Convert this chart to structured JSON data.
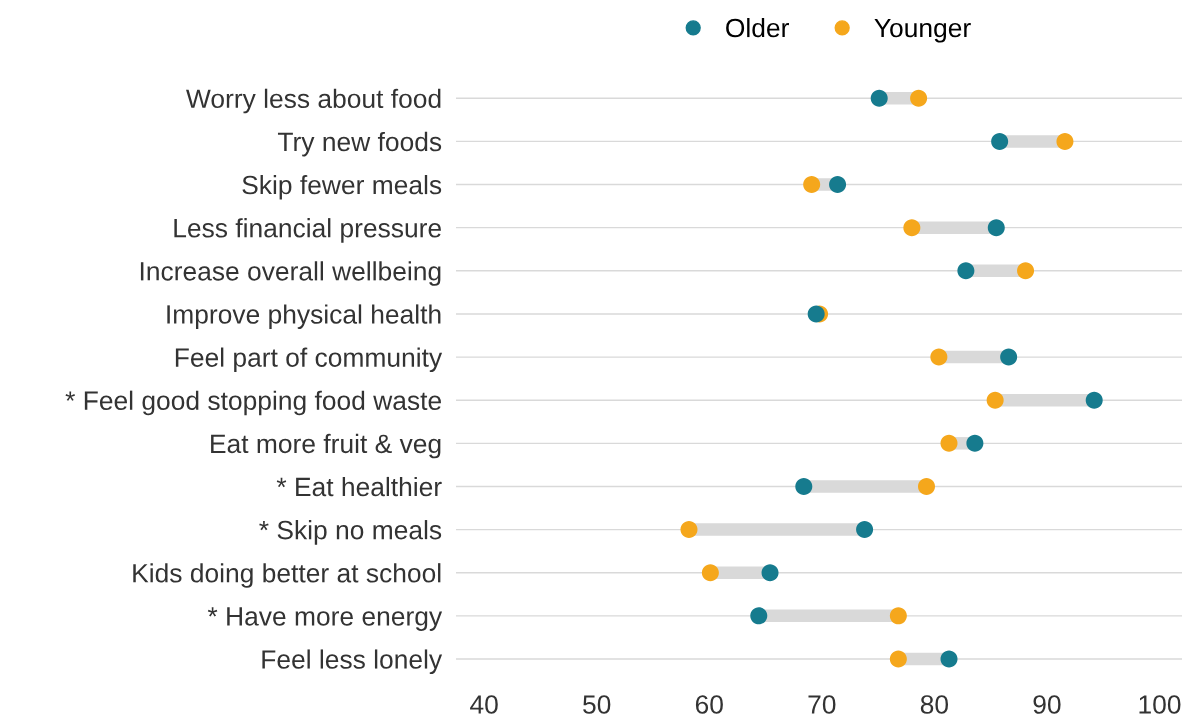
{
  "chart_data": {
    "type": "scatter",
    "orientation": "horizontal",
    "categories": [
      "Worry less about food",
      "Try new foods",
      "Skip fewer meals",
      "Less financial pressure",
      "Increase overall wellbeing",
      "Improve physical health",
      "Feel part of community",
      "* Feel good stopping food waste",
      "Eat more fruit & veg",
      "* Eat healthier",
      "* Skip no meals",
      "Kids doing better at school",
      "* Have more energy",
      "Feel less lonely"
    ],
    "series": [
      {
        "name": "Older",
        "color": "#167b8e",
        "values": [
          75.1,
          85.8,
          71.4,
          85.5,
          82.8,
          69.5,
          86.6,
          94.2,
          83.6,
          68.4,
          73.8,
          65.4,
          64.4,
          81.3
        ]
      },
      {
        "name": "Younger",
        "color": "#f5a71c",
        "values": [
          78.6,
          91.6,
          69.1,
          78.0,
          88.1,
          69.8,
          80.4,
          85.4,
          81.3,
          79.3,
          58.2,
          60.1,
          76.8,
          76.8
        ]
      }
    ],
    "xlim": [
      37.5,
      102
    ],
    "xticks": [
      40,
      50,
      60,
      70,
      80,
      90,
      100
    ],
    "grid": "y",
    "legend": "top",
    "marker": "circle"
  }
}
